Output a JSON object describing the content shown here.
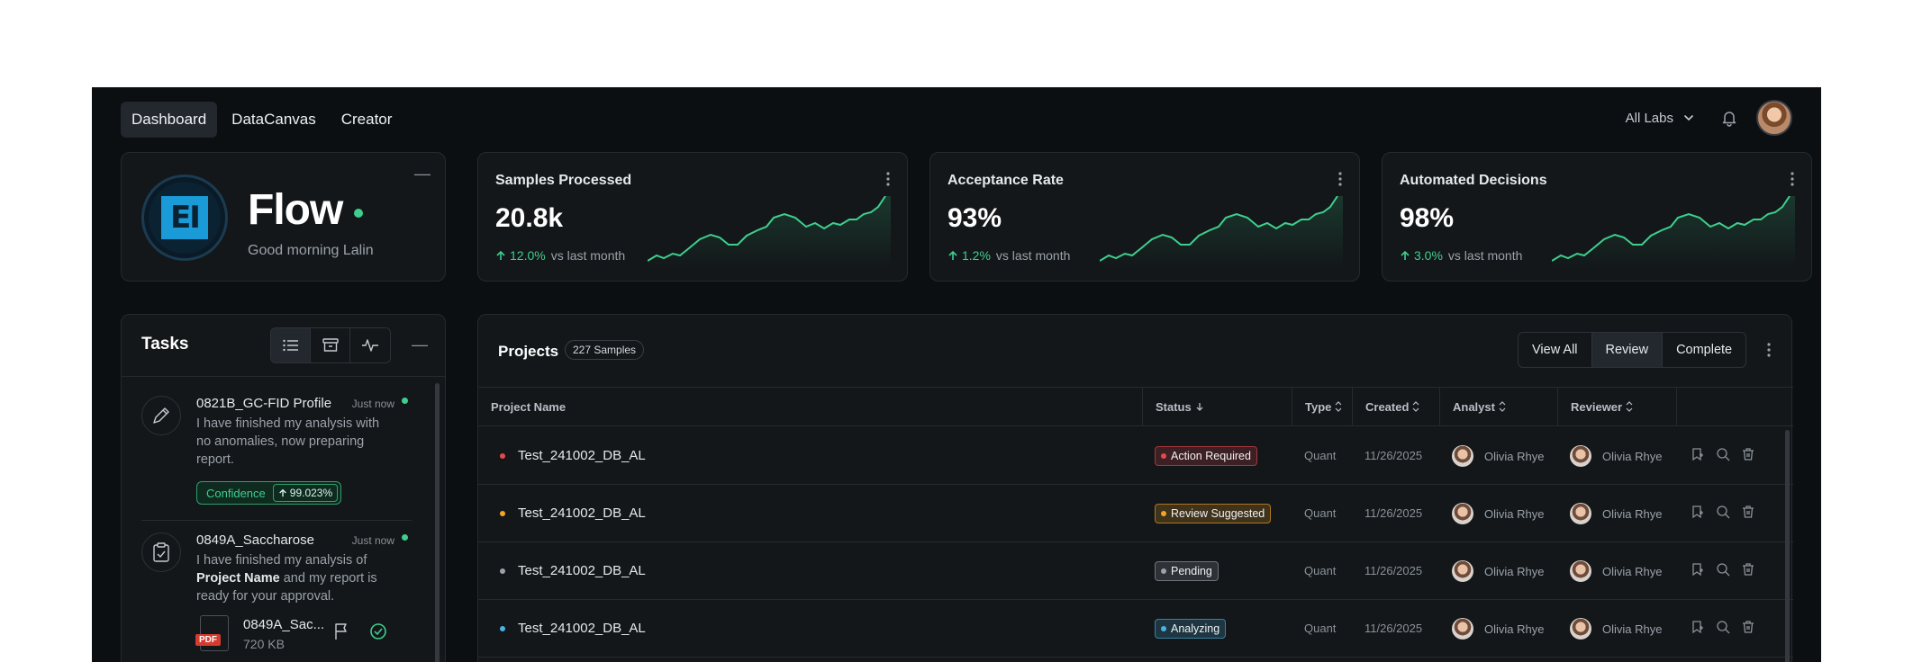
{
  "nav": {
    "items": [
      "Dashboard",
      "DataCanvas",
      "Creator"
    ],
    "active": "Dashboard"
  },
  "header": {
    "labs_label": "All Labs"
  },
  "brand": {
    "name": "Flow",
    "greeting": "Good morning Lalin",
    "logo_text": "EI"
  },
  "stats": [
    {
      "title": "Samples Processed",
      "value": "20.8k",
      "change": "12.0%",
      "suffix": "vs last month"
    },
    {
      "title": "Acceptance Rate",
      "value": "93%",
      "change": "1.2%",
      "suffix": "vs last month"
    },
    {
      "title": "Automated Decisions",
      "value": "98%",
      "change": "3.0%",
      "suffix": "vs last month"
    }
  ],
  "colors": {
    "accent_green": "#3ecf8e",
    "background": "#0c0f12",
    "card": "#131719"
  },
  "tasks": {
    "title": "Tasks",
    "items": [
      {
        "name": "0821B_GC-FID Profile",
        "time": "Just now",
        "message": "I have finished my analysis with no anomalies, now preparing report.",
        "confidence_label": "Confidence",
        "confidence_value": "99.023%",
        "icon": "pen-icon"
      },
      {
        "name": "0849A_Saccharose",
        "time": "Just now",
        "message_pre": "I have finished my analysis of",
        "message_bold": "Project Name",
        "message_post": "and my report is ready for your approval.",
        "file_name": "0849A_Sac...",
        "file_size": "720 KB",
        "file_type": "PDF",
        "icon": "clipboard-check-icon"
      }
    ]
  },
  "projects": {
    "title": "Projects",
    "badge": "227 Samples",
    "filters": [
      "View All",
      "Review",
      "Complete"
    ],
    "active_filter": "Review",
    "columns": [
      "Project Name",
      "Status",
      "Type",
      "Created",
      "Analyst",
      "Reviewer"
    ],
    "rows": [
      {
        "name": "Test_241002_DB_AL",
        "status": "Action Required",
        "status_color": "#e5484d",
        "type": "Quant",
        "created": "11/26/2025",
        "analyst": "Olivia Rhye",
        "reviewer": "Olivia Rhye"
      },
      {
        "name": "Test_241002_DB_AL",
        "status": "Review Suggested",
        "status_color": "#f5a524",
        "type": "Quant",
        "created": "11/26/2025",
        "analyst": "Olivia Rhye",
        "reviewer": "Olivia Rhye"
      },
      {
        "name": "Test_241002_DB_AL",
        "status": "Pending",
        "status_color": "#9aa2aa",
        "type": "Quant",
        "created": "11/26/2025",
        "analyst": "Olivia Rhye",
        "reviewer": "Olivia Rhye"
      },
      {
        "name": "Test_241002_DB_AL",
        "status": "Analyzing",
        "status_color": "#4cb2e6",
        "type": "Quant",
        "created": "11/26/2025",
        "analyst": "Olivia Rhye",
        "reviewer": "Olivia Rhye"
      }
    ]
  }
}
